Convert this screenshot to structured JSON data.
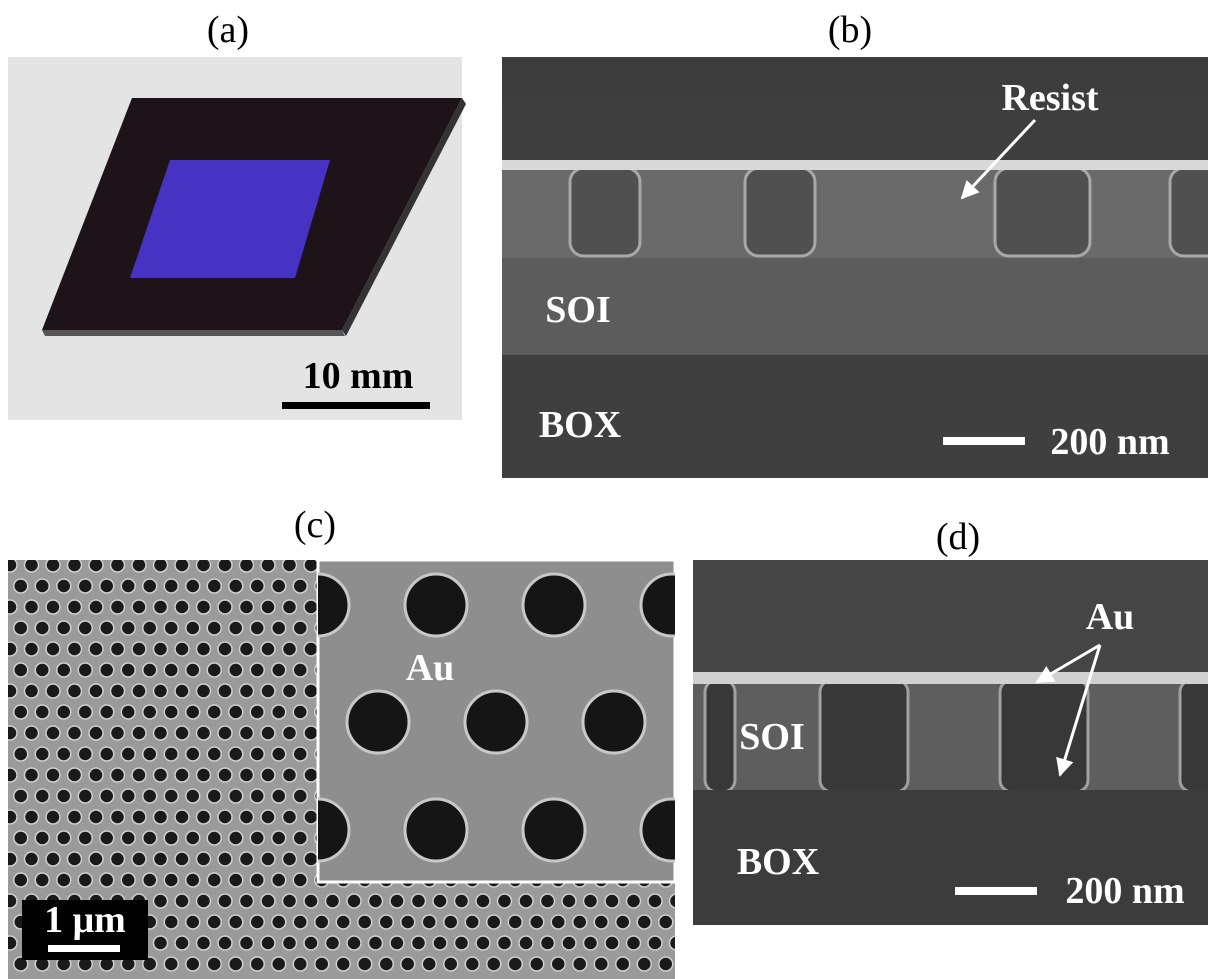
{
  "panels": [
    {
      "label": "(a)",
      "scale_bar": "10 mm"
    },
    {
      "label": "(b)",
      "annotations": [
        "Resist",
        "SOI",
        "BOX"
      ],
      "scale_bar": "200 nm"
    },
    {
      "label": "(c)",
      "annotations": [
        "Au"
      ],
      "scale_bar": "1 μm"
    },
    {
      "label": "(d)",
      "annotations": [
        "Au",
        "SOI",
        "BOX"
      ],
      "scale_bar": "200 nm"
    }
  ]
}
